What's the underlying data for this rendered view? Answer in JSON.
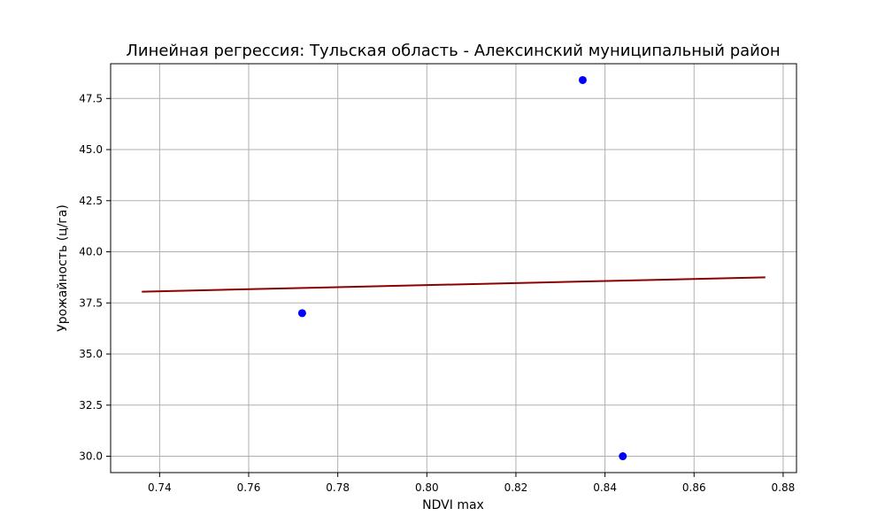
{
  "chart_data": {
    "type": "scatter",
    "title": "Линейная регрессия: Тульская область - Алексинский муниципальный район",
    "xlabel": "NDVI max",
    "ylabel": "Урожайность (ц/га)",
    "xlim": [
      0.729,
      0.883
    ],
    "ylim": [
      29.2,
      49.2
    ],
    "x_ticks": [
      0.74,
      0.76,
      0.78,
      0.8,
      0.82,
      0.84,
      0.86,
      0.88
    ],
    "x_tick_labels": [
      "0.74",
      "0.76",
      "0.78",
      "0.80",
      "0.82",
      "0.84",
      "0.86",
      "0.88"
    ],
    "y_ticks": [
      30.0,
      32.5,
      35.0,
      37.5,
      40.0,
      42.5,
      45.0,
      47.5
    ],
    "y_tick_labels": [
      "30.0",
      "32.5",
      "35.0",
      "37.5",
      "40.0",
      "42.5",
      "45.0",
      "47.5"
    ],
    "grid": true,
    "points": {
      "x": [
        0.772,
        0.835,
        0.844
      ],
      "y": [
        37.0,
        48.4,
        30.0
      ],
      "color": "#0000ff"
    },
    "regression_line": {
      "x": [
        0.736,
        0.876
      ],
      "y": [
        38.05,
        38.75
      ],
      "color": "#8b0000"
    }
  }
}
